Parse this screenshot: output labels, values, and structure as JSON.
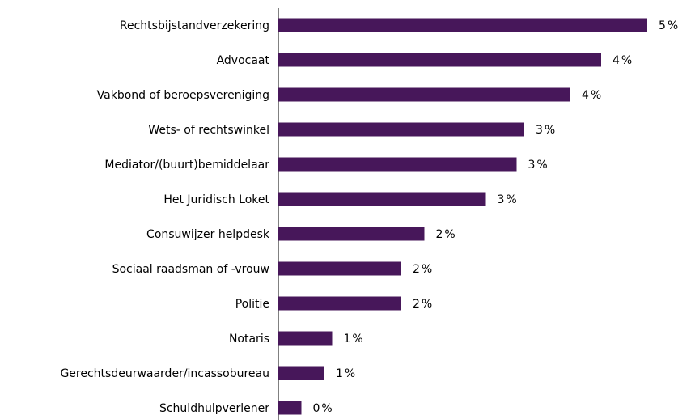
{
  "chart_data": {
    "type": "barh",
    "categories": [
      "Rechtsbijstandverzekering",
      "Advocaat",
      "Vakbond of beroepsvereniging",
      "Wets- of rechtswinkel",
      "Mediator/(buurt)bemiddelaar",
      "Het Juridisch Loket",
      "Consuwijzer helpdesk",
      "Sociaal raadsman of -vrouw",
      "Politie",
      "Notaris",
      "Gerechtsdeurwaarder/incassobureau",
      "Schuldhulpverlener"
    ],
    "values": [
      4.8,
      4.2,
      3.8,
      3.2,
      3.1,
      2.7,
      1.9,
      1.6,
      1.6,
      0.7,
      0.6,
      0.3
    ],
    "value_labels": [
      "5%",
      "4%",
      "4%",
      "3%",
      "3%",
      "3%",
      "2%",
      "2%",
      "2%",
      "1%",
      "1%",
      "0%"
    ],
    "color": "#47175a",
    "xlim": [
      0,
      5
    ]
  }
}
